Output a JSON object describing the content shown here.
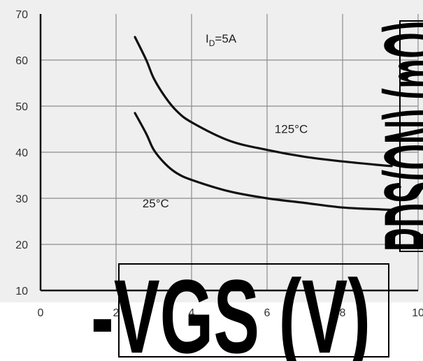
{
  "chart_data": {
    "type": "line",
    "title": "",
    "xlabel": "-VGS (V)",
    "ylabel": "RDS(ON) (mΩ)",
    "xlim": [
      0,
      10
    ],
    "ylim": [
      10,
      70
    ],
    "x_ticks": [
      "0",
      "2",
      "4",
      "6",
      "8",
      "10"
    ],
    "y_ticks": [
      "10",
      "20",
      "30",
      "40",
      "50",
      "60",
      "70"
    ],
    "grid": true,
    "annotation": {
      "label_main": "I",
      "label_sub": "D",
      "label_rest": "=5A"
    },
    "series": [
      {
        "name": "125°C",
        "x": [
          2.5,
          2.8,
          3.0,
          3.3,
          3.6,
          4.0,
          5.0,
          6.0,
          7.0,
          8.0,
          9.0,
          9.3
        ],
        "y": [
          65,
          60,
          56,
          52,
          49,
          46.5,
          42.5,
          40.5,
          39,
          38,
          37.2,
          37
        ]
      },
      {
        "name": "25°C",
        "x": [
          2.5,
          2.8,
          3.0,
          3.3,
          3.6,
          4.0,
          5.0,
          6.0,
          7.0,
          8.0,
          9.0,
          9.3
        ],
        "y": [
          48.5,
          44,
          40.5,
          37.5,
          35.5,
          34,
          31.5,
          30,
          29,
          28,
          27.6,
          27.5
        ]
      }
    ]
  }
}
